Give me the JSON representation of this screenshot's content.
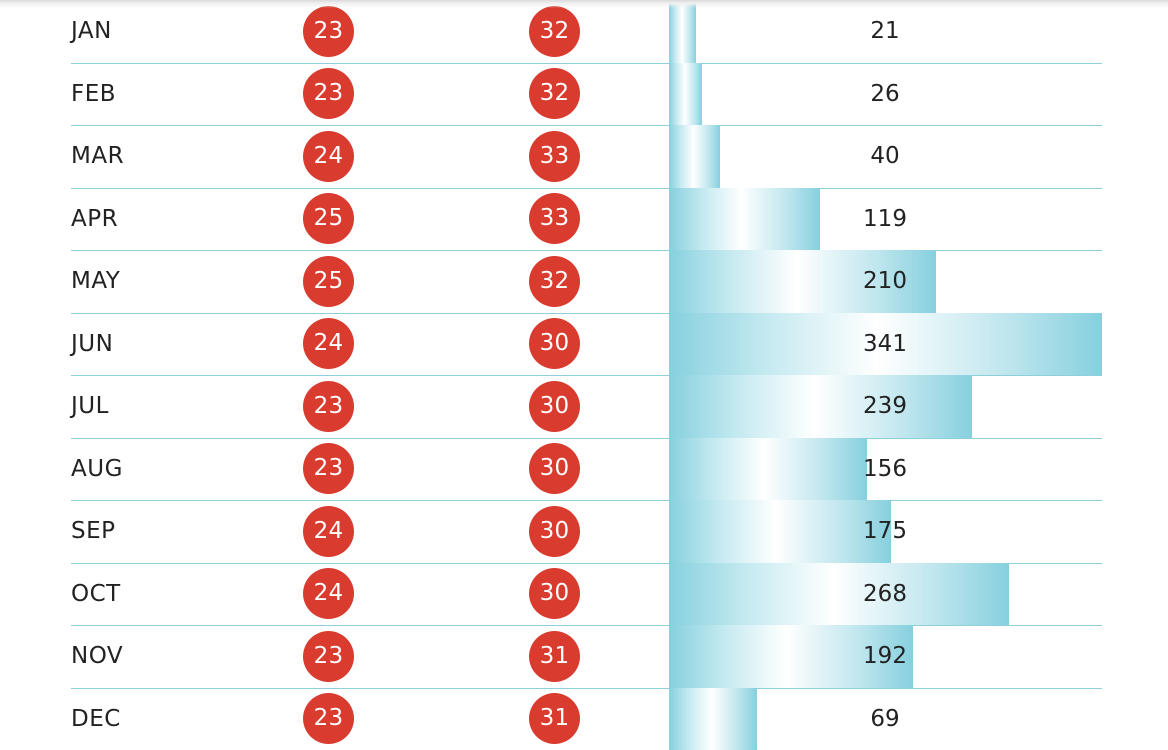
{
  "chart_data": {
    "type": "table",
    "categories": [
      "JAN",
      "FEB",
      "MAR",
      "APR",
      "MAY",
      "JUN",
      "JUL",
      "AUG",
      "SEP",
      "OCT",
      "NOV",
      "DEC"
    ],
    "series": [
      {
        "values": [
          23,
          23,
          24,
          25,
          25,
          24,
          23,
          23,
          24,
          24,
          23,
          23
        ]
      },
      {
        "values": [
          32,
          32,
          33,
          33,
          32,
          30,
          30,
          30,
          30,
          30,
          31,
          31
        ]
      },
      {
        "values": [
          21,
          26,
          40,
          119,
          210,
          341,
          239,
          156,
          175,
          268,
          192,
          69
        ]
      }
    ],
    "rain_max": 341
  },
  "colors": {
    "badge": "#d93b2e",
    "bar": "#86d0de",
    "divider": "#8fcfd9"
  }
}
